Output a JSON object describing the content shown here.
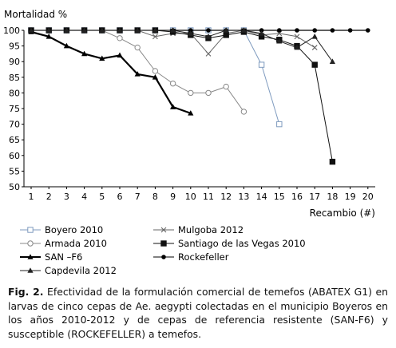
{
  "chart_data": {
    "type": "line",
    "ylabel": "Mortalidad %",
    "xlabel": "Recambio (#)",
    "x": [
      1,
      2,
      3,
      4,
      5,
      6,
      7,
      8,
      9,
      10,
      11,
      12,
      13,
      14,
      15,
      16,
      17,
      18,
      19,
      20
    ],
    "xlim": [
      1,
      20
    ],
    "ylim": [
      50,
      100
    ],
    "yticks": [
      50,
      55,
      60,
      65,
      70,
      75,
      80,
      85,
      90,
      95,
      100
    ],
    "grid": false,
    "legend_position": "bottom",
    "series": [
      {
        "name": "Boyero 2010",
        "color": "#7f9bbf",
        "width": 1,
        "marker": "open-square",
        "x": [
          1,
          2,
          3,
          4,
          5,
          6,
          7,
          8,
          9,
          10,
          11,
          12,
          13,
          14,
          15
        ],
        "values": [
          100,
          100,
          100,
          100,
          100,
          100,
          100,
          100,
          100,
          100,
          100,
          100,
          100,
          89,
          70
        ]
      },
      {
        "name": "Mulgoba 2012",
        "color": "#666666",
        "width": 1,
        "marker": "x",
        "x": [
          1,
          2,
          3,
          4,
          5,
          6,
          7,
          8,
          9,
          10,
          11,
          12,
          13,
          14,
          15,
          16,
          17
        ],
        "values": [
          100,
          100,
          100,
          100,
          100,
          100,
          100,
          98,
          99,
          99,
          92.5,
          99,
          100,
          98.5,
          99,
          98,
          94.5
        ]
      },
      {
        "name": "Armada 2010",
        "color": "#888888",
        "width": 1,
        "marker": "open-circle",
        "x": [
          1,
          2,
          3,
          4,
          5,
          6,
          7,
          8,
          9,
          10,
          11,
          12,
          13
        ],
        "values": [
          100,
          100,
          100,
          100,
          100,
          97.5,
          94.5,
          87,
          83,
          80,
          80,
          82,
          74
        ]
      },
      {
        "name": "Santiago de las Vegas 2010",
        "color": "#111111",
        "width": 1,
        "marker": "square",
        "x": [
          1,
          2,
          3,
          4,
          5,
          6,
          7,
          8,
          9,
          10,
          11,
          12,
          13,
          14,
          15,
          16,
          17,
          18
        ],
        "values": [
          100,
          100,
          100,
          100,
          100,
          100,
          100,
          100,
          99.5,
          98.5,
          97.5,
          98.5,
          99.5,
          98,
          97,
          95,
          89,
          58
        ]
      },
      {
        "name": "SAN –F6",
        "color": "#000000",
        "width": 2.2,
        "marker": "triangle",
        "x": [
          1,
          2,
          3,
          4,
          5,
          6,
          7,
          8,
          9,
          10
        ],
        "values": [
          99.5,
          98,
          95,
          92.5,
          91,
          92,
          86,
          85,
          75.5,
          73.5
        ]
      },
      {
        "name": "Rockefeller",
        "color": "#000000",
        "width": 1.3,
        "marker": "circle",
        "x": [
          1,
          2,
          3,
          4,
          5,
          6,
          7,
          8,
          9,
          10,
          11,
          12,
          13,
          14,
          15,
          16,
          17,
          18,
          19,
          20
        ],
        "values": [
          100,
          100,
          100,
          100,
          100,
          100,
          100,
          100,
          100,
          100,
          100,
          100,
          100,
          100,
          100,
          100,
          100,
          100,
          100,
          100
        ]
      },
      {
        "name": "Capdevila 2012",
        "color": "#222222",
        "width": 1,
        "marker": "triangle",
        "x": [
          1,
          2,
          3,
          4,
          5,
          6,
          7,
          8,
          9,
          10,
          11,
          12,
          13,
          14,
          15,
          16,
          17,
          18
        ],
        "values": [
          100,
          100,
          100,
          100,
          100,
          100,
          100,
          100,
          100,
          99,
          98,
          100,
          100,
          99,
          96.5,
          94.5,
          98,
          90
        ]
      }
    ]
  },
  "caption": {
    "label": "Fig. 2.",
    "text": " Efectividad de la formulación comercial de temefos (ABATEX G1) en larvas de cinco cepas de Ae. aegypti colectadas en el municipio Boyeros en los años 2010-2012 y de cepas de referencia resistente (SAN-F6) y susceptible (ROCKEFELLER) a temefos."
  }
}
